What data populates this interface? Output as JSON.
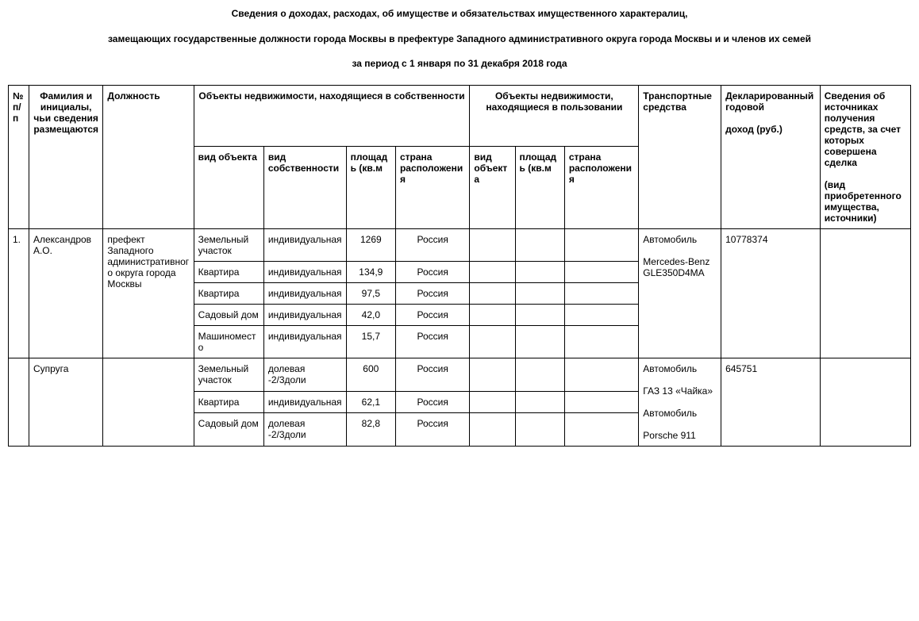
{
  "title": {
    "line1": "Сведения о доходах, расходах, об имуществе и обязательствах имущественного характералиц,",
    "line2": "замещающих государственные должности города Москвы в префектуре Западного административного округа города Москвы и и членов их семей",
    "line3": "за период с 1 января по 31 декабря 2018 года"
  },
  "headers": {
    "num": "№ п/п",
    "name": "Фамилия и инициалы, чьи сведения размещаются",
    "position": "Должность",
    "owned": "Объекты недвижимости, находящиеся в собственности",
    "used": "Объекты недвижимости, находящиеся в пользовании",
    "transport": "Транспортные средства",
    "income": "Декларированный годовой",
    "income_sub": "доход (руб.)",
    "sources": "Сведения об источниках получения средств, за счет которых совершена сделка",
    "sources_sub": "(вид приобретенного имущества, источники)",
    "obj_type": "вид объекта",
    "own_kind": "вид собственности",
    "area": "площадь (кв.м",
    "country": "страна расположения"
  },
  "rows": {
    "p1": {
      "num": "1.",
      "name": "Александров А.О.",
      "position": "префект Западного административного округа города Москвы",
      "transport": "Автомобиль\n\nMercedes-Benz GLE350D4MA",
      "income": "10778374",
      "props": [
        {
          "type": "Земельный участок",
          "kind": "индивидуальная",
          "area": "1269",
          "country": "Россия"
        },
        {
          "type": "Квартира",
          "kind": "индивидуальная",
          "area": "134,9",
          "country": "Россия"
        },
        {
          "type": "Квартира",
          "kind": "индивидуальная",
          "area": "97,5",
          "country": "Россия"
        },
        {
          "type": "Садовый дом",
          "kind": "индивидуальная",
          "area": "42,0",
          "country": "Россия"
        },
        {
          "type": "Машиноместо",
          "kind": "индивидуальная",
          "area": "15,7",
          "country": "Россия"
        }
      ]
    },
    "p2": {
      "name": "Супруга",
      "transport": "Автомобиль\n\nГАЗ 13 «Чайка»\n\nАвтомобиль\n\nPorsche 911",
      "income": "645751",
      "props": [
        {
          "type": "Земельный участок",
          "kind": "долевая -2/3доли",
          "area": "600",
          "country": "Россия"
        },
        {
          "type": "Квартира",
          "kind": "индивидуальная",
          "area": "62,1",
          "country": "Россия"
        },
        {
          "type": "Садовый дом",
          "kind": "долевая -2/3доли",
          "area": "82,8",
          "country": "Россия"
        }
      ]
    }
  }
}
